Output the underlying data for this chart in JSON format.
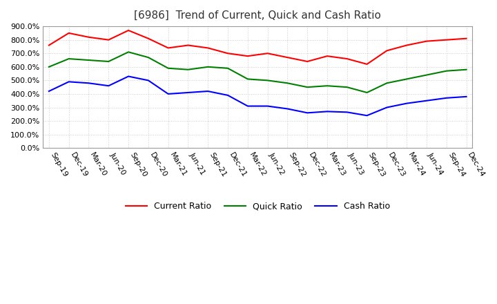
{
  "title": "[6986]  Trend of Current, Quick and Cash Ratio",
  "x_labels": [
    "Sep-19",
    "Dec-19",
    "Mar-20",
    "Jun-20",
    "Sep-20",
    "Dec-20",
    "Mar-21",
    "Jun-21",
    "Sep-21",
    "Dec-21",
    "Mar-22",
    "Jun-22",
    "Sep-22",
    "Dec-22",
    "Mar-23",
    "Jun-23",
    "Sep-23",
    "Dec-23",
    "Mar-24",
    "Jun-24",
    "Sep-24",
    "Dec-24"
  ],
  "current_ratio": [
    760,
    850,
    820,
    800,
    870,
    810,
    740,
    760,
    740,
    700,
    680,
    700,
    670,
    640,
    680,
    660,
    620,
    720,
    760,
    790,
    800,
    810
  ],
  "quick_ratio": [
    600,
    660,
    650,
    640,
    710,
    670,
    590,
    580,
    600,
    590,
    510,
    500,
    480,
    450,
    460,
    450,
    410,
    480,
    510,
    540,
    570,
    580
  ],
  "cash_ratio": [
    420,
    490,
    480,
    460,
    530,
    500,
    400,
    410,
    420,
    390,
    310,
    310,
    290,
    260,
    270,
    265,
    240,
    300,
    330,
    350,
    370,
    380
  ],
  "current_color": "#ff0000",
  "quick_color": "#008000",
  "cash_color": "#0000ff",
  "ylim": [
    0,
    900
  ],
  "yticks": [
    0,
    100,
    200,
    300,
    400,
    500,
    600,
    700,
    800,
    900
  ],
  "background_color": "#ffffff",
  "plot_bg_color": "#ffffff",
  "grid_color": "#cccccc",
  "title_fontsize": 11,
  "tick_fontsize": 8,
  "legend_fontsize": 9
}
